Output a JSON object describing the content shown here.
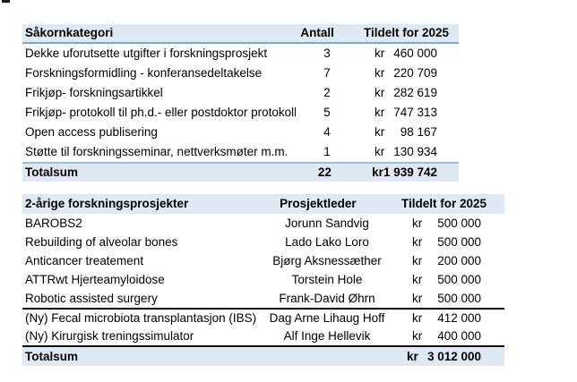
{
  "colors": {
    "header_fill": "#DEE9F3",
    "blue_border": "#7FA7CE",
    "black_border": "#000000"
  },
  "table1": {
    "header": {
      "category": "Såkornkategori",
      "count": "Antall",
      "allocated": "Tildelt for 2025"
    },
    "rows": [
      {
        "name": "Dekke uforutsette utgifter i forskningsprosjekt",
        "antall": "3",
        "currency": "kr",
        "amount": "460 000"
      },
      {
        "name": "Forskningsformidling - konferansedeltakelse",
        "antall": "7",
        "currency": "kr",
        "amount": "220 709"
      },
      {
        "name": "Frikjøp- forskningsartikkel",
        "antall": "2",
        "currency": "kr",
        "amount": "282 619"
      },
      {
        "name": "Frikjøp- protokoll til ph.d.- eller postdoktor protokoll",
        "antall": "5",
        "currency": "kr",
        "amount": "747 313"
      },
      {
        "name": "Open access publisering",
        "antall": "4",
        "currency": "kr",
        "amount": "98 167"
      },
      {
        "name": "Støtte til forskningsseminar, nettverksmøter m.m.",
        "antall": "1",
        "currency": "kr",
        "amount": "130 934"
      }
    ],
    "total": {
      "label": "Totalsum",
      "antall": "22",
      "currency": "kr",
      "amount": "1 939 742"
    }
  },
  "table2": {
    "header": {
      "project": "2-årige forskningsprosjekter",
      "leader": "Prosjektleder",
      "allocated": "Tildelt for 2025"
    },
    "rows": [
      {
        "name": "BAROBS2",
        "leader": "Jorunn Sandvig",
        "currency": "kr",
        "amount": "500 000"
      },
      {
        "name": "Rebuilding of alveolar bones",
        "leader": "Lado Lako Loro",
        "currency": "kr",
        "amount": "500 000"
      },
      {
        "name": "Anticancer treatement",
        "leader": "Bjørg Aksnessæther",
        "currency": "kr",
        "amount": "200 000"
      },
      {
        "name": "ATTRwt Hjerteamyloidose",
        "leader": "Torstein Hole",
        "currency": "kr",
        "amount": "500 000"
      },
      {
        "name": "Robotic assisted surgery",
        "leader": "Frank-David Øhrn",
        "currency": "kr",
        "amount": "500 000"
      },
      {
        "name": "(Ny) Fecal microbiota transplantasjon (IBS)",
        "leader": "Dag Arne Lihaug Hoff",
        "currency": "kr",
        "amount": "412 000"
      },
      {
        "name": "(Ny) Kirurgisk treningssimulator",
        "leader": "Alf Inge Hellevik",
        "currency": "kr",
        "amount": "400 000"
      }
    ],
    "total": {
      "label": "Totalsum",
      "currency": "kr",
      "amount": "3 012 000"
    }
  }
}
